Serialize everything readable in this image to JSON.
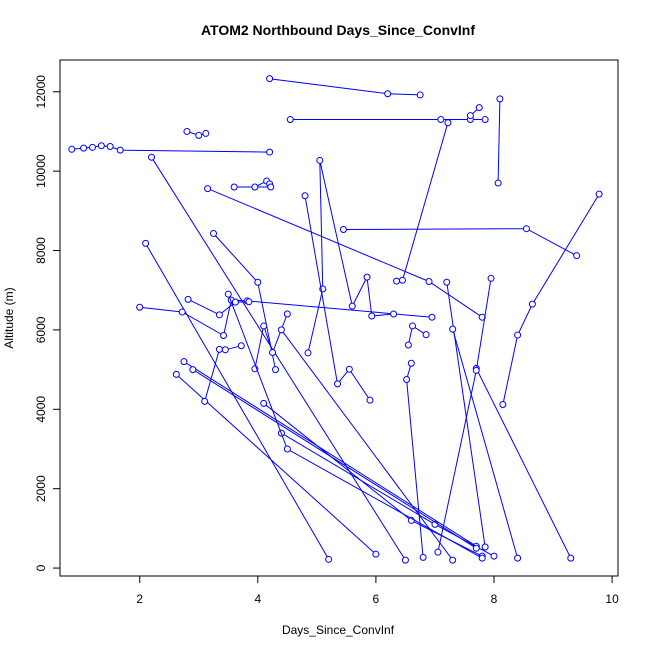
{
  "chart_data": {
    "type": "scatter",
    "title": "ATOM2 Northbound Days_Since_ConvInf",
    "xlabel": "Days_Since_ConvInf",
    "ylabel": "Altitude (m)",
    "xlim": [
      0.65,
      10.1
    ],
    "ylim": [
      -200,
      12800
    ],
    "x_ticks": [
      2,
      4,
      6,
      8,
      10
    ],
    "x_tick_labels": [
      "2",
      "4",
      "6",
      "8",
      "10"
    ],
    "y_ticks": [
      0,
      2000,
      4000,
      6000,
      8000,
      10000,
      12000
    ],
    "y_tick_labels": [
      "0",
      "2000",
      "4000",
      "6000",
      "8000",
      "10000",
      "12000"
    ],
    "grid": false,
    "legend": "none",
    "line_color": "#0000ff",
    "style": "lines with open circle markers",
    "series": [
      {
        "x": [
          0.85,
          1.05,
          1.2,
          1.35,
          1.5,
          1.67,
          4.2
        ],
        "y": [
          10550,
          10580,
          10600,
          10640,
          10620,
          10530,
          10480
        ]
      },
      {
        "x": [
          4.2,
          6.2,
          6.75
        ],
        "y": [
          12330,
          11950,
          11920
        ]
      },
      {
        "x": [
          4.55,
          7.1,
          7.6,
          7.85
        ],
        "y": [
          11300,
          11300,
          11300,
          11300
        ]
      },
      {
        "x": [
          7.6,
          7.75
        ],
        "y": [
          11400,
          11600
        ]
      },
      {
        "x": [
          8.1,
          8.07
        ],
        "y": [
          11820,
          9700
        ]
      },
      {
        "x": [
          5.45,
          8.55,
          9.4
        ],
        "y": [
          8530,
          8550,
          7870
        ]
      },
      {
        "x": [
          9.78,
          8.65,
          8.4,
          8.15
        ],
        "y": [
          9420,
          6650,
          5870,
          4120
        ]
      },
      {
        "x": [
          2.8,
          3.0,
          3.12
        ],
        "y": [
          11000,
          10900,
          10950
        ]
      },
      {
        "x": [
          3.95,
          4.15,
          4.2,
          4.22,
          3.6
        ],
        "y": [
          9600,
          9750,
          9680,
          9600,
          9600
        ]
      },
      {
        "x": [
          2.2,
          6.5
        ],
        "y": [
          10350,
          200
        ]
      },
      {
        "x": [
          2.1,
          5.2
        ],
        "y": [
          8180,
          220
        ]
      },
      {
        "x": [
          3.25,
          4.0,
          4.3
        ],
        "y": [
          8430,
          7200,
          5000
        ]
      },
      {
        "x": [
          3.15,
          6.9,
          7.8
        ],
        "y": [
          9560,
          7220,
          6320
        ]
      },
      {
        "x": [
          2.62,
          6.0
        ],
        "y": [
          4880,
          350
        ]
      },
      {
        "x": [
          2.75,
          7.7
        ],
        "y": [
          5200,
          550
        ]
      },
      {
        "x": [
          2.0,
          2.72,
          3.42,
          3.55,
          3.82,
          6.95
        ],
        "y": [
          6570,
          6450,
          5860,
          6750,
          6730,
          6320
        ]
      },
      {
        "x": [
          2.82,
          3.35,
          3.62,
          3.85
        ],
        "y": [
          6770,
          6380,
          6700,
          6710
        ]
      },
      {
        "x": [
          3.1,
          3.35,
          3.45,
          3.72
        ],
        "y": [
          4200,
          5510,
          5500,
          5600
        ]
      },
      {
        "x": [
          3.95,
          4.1,
          4.25,
          4.5
        ],
        "y": [
          5020,
          6100,
          5430,
          6400
        ]
      },
      {
        "x": [
          4.85,
          5.1,
          5.05,
          5.6,
          5.85,
          5.93,
          6.3
        ],
        "y": [
          5420,
          7030,
          10270,
          6600,
          7330,
          6350,
          6400
        ]
      },
      {
        "x": [
          4.8,
          5.35,
          5.55,
          5.9
        ],
        "y": [
          9380,
          4640,
          5010,
          4230
        ]
      },
      {
        "x": [
          6.35,
          6.45,
          7.22
        ],
        "y": [
          7230,
          7250,
          11220
        ]
      },
      {
        "x": [
          6.55,
          6.62,
          6.85
        ],
        "y": [
          5620,
          6100,
          5880
        ]
      },
      {
        "x": [
          6.6,
          6.52,
          6.8
        ],
        "y": [
          5160,
          4750,
          270
        ]
      },
      {
        "x": [
          7.2,
          7.85
        ],
        "y": [
          7200,
          530
        ]
      },
      {
        "x": [
          7.3,
          8.4
        ],
        "y": [
          6020,
          250
        ]
      },
      {
        "x": [
          7.7,
          9.3
        ],
        "y": [
          5030,
          250
        ]
      },
      {
        "x": [
          7.95,
          7.7,
          7.05
        ],
        "y": [
          7300,
          4980,
          400
        ]
      },
      {
        "x": [
          4.1,
          6.6,
          7.8
        ],
        "y": [
          4150,
          1200,
          300
        ]
      },
      {
        "x": [
          4.4,
          7.0,
          8.0
        ],
        "y": [
          3400,
          1100,
          300
        ]
      },
      {
        "x": [
          3.5,
          4.5,
          7.8
        ],
        "y": [
          6900,
          3000,
          250
        ]
      },
      {
        "x": [
          4.4,
          7.3
        ],
        "y": [
          6000,
          200
        ]
      },
      {
        "x": [
          2.9,
          7.7
        ],
        "y": [
          5000,
          500
        ]
      }
    ]
  }
}
